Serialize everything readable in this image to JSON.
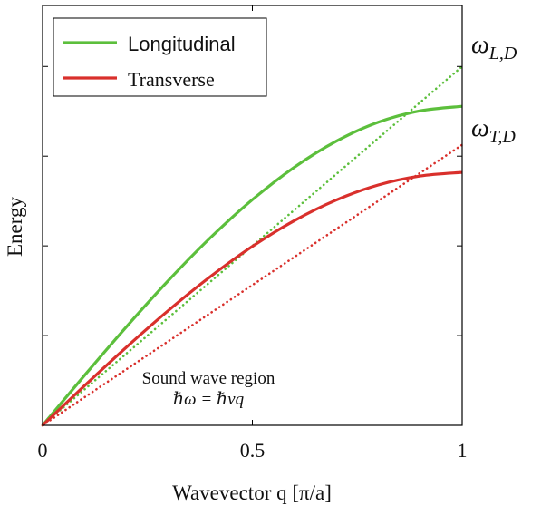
{
  "chart_data": {
    "type": "line",
    "title": "",
    "xlabel": "Wavevector q [π/a]",
    "ylabel": "Energy",
    "xlim": [
      0,
      1
    ],
    "ylim": [
      0,
      1.17
    ],
    "xticks": [
      0,
      0.5,
      1
    ],
    "xtick_labels": [
      "0",
      "0.5",
      "1"
    ],
    "yticks": [
      0.25,
      0.5,
      0.75,
      1.0
    ],
    "grid": false,
    "legend_position": "top-left",
    "series": [
      {
        "name": "Longitudinal",
        "style": "solid",
        "color": "#5cbf3c",
        "x": [
          0,
          0.1,
          0.2,
          0.3,
          0.4,
          0.5,
          0.6,
          0.7,
          0.8,
          0.9,
          1.0
        ],
        "y": [
          0,
          0.1391,
          0.2748,
          0.4037,
          0.5227,
          0.6287,
          0.7192,
          0.7918,
          0.8446,
          0.8763,
          0.889
        ]
      },
      {
        "name": "Transverse",
        "style": "solid",
        "color": "#d9302c",
        "x": [
          0,
          0.1,
          0.2,
          0.3,
          0.4,
          0.5,
          0.6,
          0.7,
          0.8,
          0.9,
          1.0
        ],
        "y": [
          0,
          0.1103,
          0.2179,
          0.3201,
          0.4144,
          0.4985,
          0.5703,
          0.6278,
          0.6697,
          0.6948,
          0.7049
        ]
      },
      {
        "style": "dotted",
        "color": "#5cbf3c",
        "x": [
          0,
          1
        ],
        "y": [
          0,
          1.0
        ]
      },
      {
        "style": "dotted",
        "color": "#d9302c",
        "x": [
          0,
          1
        ],
        "y": [
          0,
          0.7816
        ]
      }
    ],
    "annotations": {
      "omega_L": {
        "base": "ω",
        "sub": "L,D"
      },
      "omega_T": {
        "base": "ω",
        "sub": "T,D"
      },
      "region_label": "Sound wave region",
      "region_formula": "ℏω = ℏvq"
    }
  }
}
